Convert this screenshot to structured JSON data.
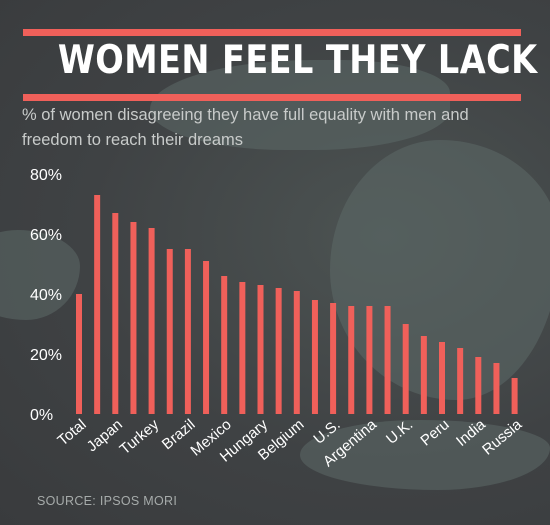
{
  "header": {
    "title": "WOMEN FEEL THEY LACK EQUALITY",
    "subtitle": "% of women disagreeing they have full equality with men and freedom to reach their dreams"
  },
  "footer": {
    "source": "SOURCE: IPSOS MORI"
  },
  "colors": {
    "bar": "#f0605a",
    "rule": "#f0605a",
    "axis": "#ffffff",
    "background": "#3f4244"
  },
  "chart_data": {
    "type": "bar",
    "title": "WOMEN FEEL THEY LACK EQUALITY",
    "subtitle": "% of women disagreeing they have full equality with men and freedom to reach their dreams",
    "ylim": [
      0,
      80
    ],
    "yticks": [
      "0%",
      "20%",
      "40%",
      "60%",
      "80%"
    ],
    "ytick_values": [
      0,
      20,
      40,
      60,
      80
    ],
    "grid": false,
    "categories": [
      "Total",
      "",
      "Japan",
      "",
      "Turkey",
      "",
      "Brazil",
      "",
      "Mexico",
      "",
      "Hungary",
      "",
      "Belgium",
      "",
      "U.S.",
      "",
      "Argentina",
      "",
      "U.K.",
      "",
      "Peru",
      "",
      "India",
      "",
      "Russia"
    ],
    "values": [
      40,
      73,
      67,
      64,
      62,
      55,
      55,
      51,
      46,
      44,
      43,
      42,
      41,
      38,
      37,
      36,
      36,
      36,
      30,
      26,
      24,
      22,
      19,
      17,
      12
    ]
  }
}
